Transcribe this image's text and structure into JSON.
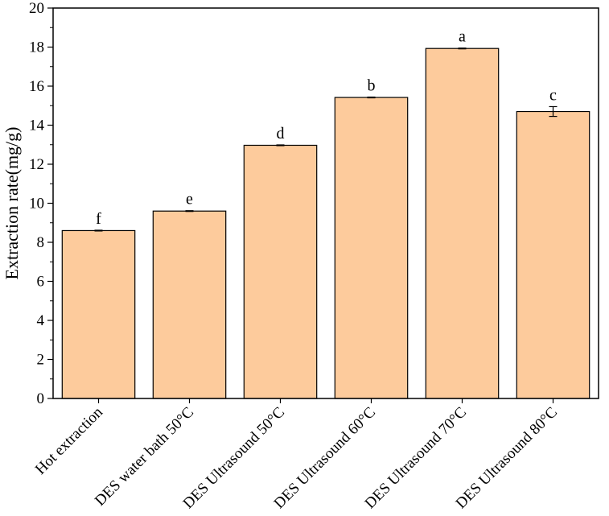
{
  "chart_data": {
    "type": "bar",
    "title": "",
    "xlabel": "",
    "ylabel": "Extraction rate(mg/g)",
    "ylim": [
      0,
      20
    ],
    "yticks": [
      0,
      2,
      4,
      6,
      8,
      10,
      12,
      14,
      16,
      18,
      20
    ],
    "grid": false,
    "legend": "none",
    "bar_color": "#FDCB9C",
    "edge_color": "#000000",
    "categories": [
      "Hot extraction",
      "DES water bath 50°C",
      "DES Ultrasound 50°C",
      "DES Ultrasound 60°C",
      "DES Ultrasound 70°C",
      "DES Ultrasound 80°C"
    ],
    "values": [
      8.6,
      9.6,
      12.97,
      15.42,
      17.93,
      14.7
    ],
    "errors": [
      0.02,
      0.02,
      0.02,
      0.02,
      0.02,
      0.25
    ],
    "significance_labels": [
      "f",
      "e",
      "d",
      "b",
      "a",
      "c"
    ]
  }
}
